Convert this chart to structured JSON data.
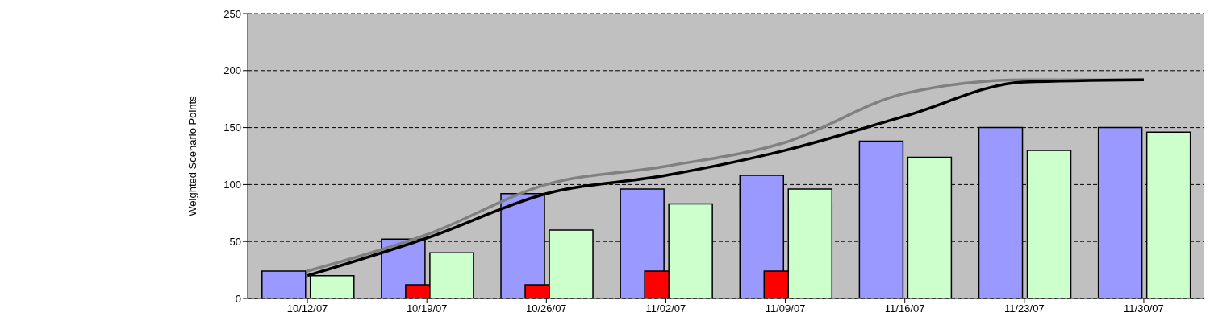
{
  "chart_data": {
    "type": "bar",
    "ylabel": "Weighted Scenario Points",
    "categories": [
      "10/12/07",
      "10/19/07",
      "10/26/07",
      "11/02/07",
      "11/09/07",
      "11/16/07",
      "11/23/07",
      "11/30/07"
    ],
    "series": [
      {
        "color": "#9999ff",
        "values": [
          24,
          52,
          92,
          96,
          108,
          138,
          150,
          150
        ]
      },
      {
        "color": "#ff0000",
        "values": [
          null,
          12,
          12,
          24,
          24,
          null,
          null,
          null
        ]
      },
      {
        "color": "#ccffcc",
        "values": [
          20,
          40,
          60,
          83,
          96,
          124,
          130,
          146
        ]
      },
      {
        "type": "line",
        "color": "#808080",
        "values": [
          24,
          56,
          100,
          116,
          137,
          180,
          192,
          192
        ]
      },
      {
        "type": "line",
        "color": "#000000",
        "values": [
          20,
          53,
          92,
          108,
          130,
          160,
          190,
          192
        ]
      }
    ],
    "ylim": [
      0,
      250
    ],
    "yticks": [
      0,
      50,
      100,
      150,
      200,
      250
    ],
    "grid": "y",
    "legend": false,
    "marker": "none"
  }
}
